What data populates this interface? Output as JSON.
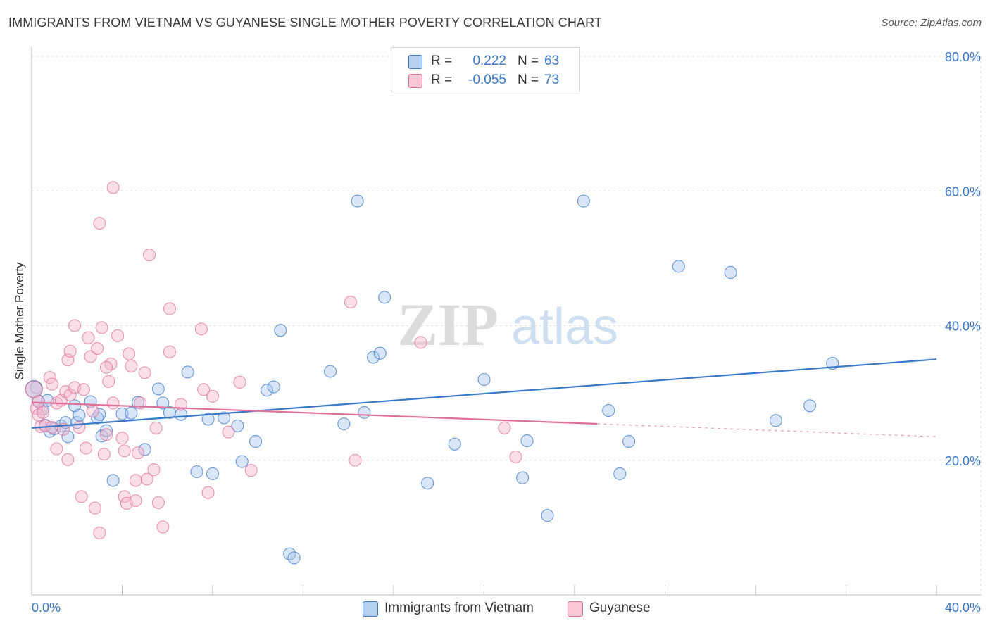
{
  "title": "IMMIGRANTS FROM VIETNAM VS GUYANESE SINGLE MOTHER POVERTY CORRELATION CHART",
  "source": "Source: ZipAtlas.com",
  "watermark": {
    "zip": "ZIP",
    "atlas": "atlas"
  },
  "colors": {
    "blue": "#3a78c8",
    "blue_fill": "#a9c8ee",
    "blue_swatch": "#b8d0f0",
    "pink": "#e0709a",
    "pink_fill": "#f6b8cc",
    "pink_swatch": "#f8c8d6",
    "grid": "#dddddd",
    "axis": "#bbbbbb"
  },
  "legend_top": {
    "rows": [
      {
        "r_label": "R =",
        "r_value": "0.222",
        "n_label": "N =",
        "n_value": "63"
      },
      {
        "r_label": "R =",
        "r_value": "-0.055",
        "n_label": "N =",
        "n_value": "73"
      }
    ]
  },
  "legend_bottom": {
    "items": [
      {
        "label": "Immigrants from Vietnam"
      },
      {
        "label": "Guyanese"
      }
    ]
  },
  "chart_data": {
    "type": "scatter",
    "title": "IMMIGRANTS FROM VIETNAM VS GUYANESE SINGLE MOTHER POVERTY CORRELATION CHART",
    "xlabel": "",
    "ylabel": "Single Mother Poverty",
    "xlim": [
      0,
      40
    ],
    "ylim": [
      0,
      80
    ],
    "x_tick_labels": [
      "0.0%",
      "40.0%"
    ],
    "y_ticks": [
      20,
      40,
      60,
      80
    ],
    "y_tick_labels": [
      "20.0%",
      "40.0%",
      "60.0%",
      "80.0%"
    ],
    "grid": true,
    "legend": "top-center and bottom",
    "series": [
      {
        "name": "Immigrants from Vietnam",
        "color": "#3a78c8",
        "r": 0.222,
        "n": 63,
        "trend": {
          "x": [
            0,
            40
          ],
          "y": [
            24.8,
            35.0
          ],
          "dashed_from": null
        },
        "points": [
          [
            0.2,
            30.8
          ],
          [
            0.3,
            28.8
          ],
          [
            0.5,
            27.6
          ],
          [
            0.6,
            25.2
          ],
          [
            0.7,
            28.9
          ],
          [
            0.8,
            24.3
          ],
          [
            1.0,
            24.7
          ],
          [
            1.3,
            25.1
          ],
          [
            1.5,
            25.6
          ],
          [
            1.6,
            23.5
          ],
          [
            1.9,
            28.1
          ],
          [
            2.0,
            25.6
          ],
          [
            2.1,
            26.7
          ],
          [
            2.6,
            28.7
          ],
          [
            2.9,
            26.3
          ],
          [
            3.1,
            23.6
          ],
          [
            3.3,
            24.4
          ],
          [
            3.0,
            26.8
          ],
          [
            3.6,
            17.0
          ],
          [
            4.0,
            26.9
          ],
          [
            4.4,
            27.0
          ],
          [
            4.7,
            28.6
          ],
          [
            5.0,
            21.6
          ],
          [
            5.6,
            30.6
          ],
          [
            5.8,
            28.5
          ],
          [
            6.1,
            27.1
          ],
          [
            6.6,
            26.8
          ],
          [
            6.9,
            33.1
          ],
          [
            7.3,
            18.3
          ],
          [
            7.8,
            26.1
          ],
          [
            8.0,
            18.0
          ],
          [
            8.5,
            26.3
          ],
          [
            9.1,
            25.1
          ],
          [
            9.3,
            19.8
          ],
          [
            9.9,
            22.8
          ],
          [
            10.4,
            30.4
          ],
          [
            10.7,
            30.9
          ],
          [
            11.0,
            39.3
          ],
          [
            11.4,
            6.1
          ],
          [
            11.6,
            5.5
          ],
          [
            13.2,
            33.2
          ],
          [
            13.8,
            25.4
          ],
          [
            14.4,
            58.5
          ],
          [
            14.7,
            27.1
          ],
          [
            15.1,
            35.3
          ],
          [
            15.4,
            35.9
          ],
          [
            15.6,
            44.2
          ],
          [
            17.5,
            16.6
          ],
          [
            18.7,
            22.4
          ],
          [
            20.0,
            32.0
          ],
          [
            21.7,
            17.4
          ],
          [
            21.9,
            22.9
          ],
          [
            22.8,
            11.8
          ],
          [
            24.4,
            58.5
          ],
          [
            25.5,
            27.4
          ],
          [
            26.0,
            18.0
          ],
          [
            26.4,
            22.8
          ],
          [
            28.6,
            48.8
          ],
          [
            30.9,
            47.9
          ],
          [
            32.9,
            25.9
          ],
          [
            34.4,
            28.1
          ],
          [
            35.4,
            34.4
          ],
          [
            0.1,
            30.6
          ]
        ]
      },
      {
        "name": "Guyanese",
        "color": "#e0709a",
        "r": -0.055,
        "n": 73,
        "trend": {
          "x": [
            0,
            40
          ],
          "y": [
            28.6,
            23.5
          ],
          "dashed_from": 25
        },
        "points": [
          [
            0.1,
            30.5
          ],
          [
            0.2,
            27.7
          ],
          [
            0.3,
            28.7
          ],
          [
            0.3,
            26.7
          ],
          [
            0.4,
            25.0
          ],
          [
            0.5,
            27.1
          ],
          [
            0.6,
            25.1
          ],
          [
            0.8,
            32.3
          ],
          [
            0.9,
            31.3
          ],
          [
            0.9,
            24.9
          ],
          [
            1.1,
            21.7
          ],
          [
            1.1,
            28.5
          ],
          [
            1.3,
            28.9
          ],
          [
            1.4,
            24.6
          ],
          [
            1.5,
            30.2
          ],
          [
            1.6,
            34.9
          ],
          [
            1.6,
            20.1
          ],
          [
            1.7,
            29.7
          ],
          [
            1.7,
            36.2
          ],
          [
            1.9,
            30.8
          ],
          [
            1.9,
            40.0
          ],
          [
            2.1,
            24.9
          ],
          [
            2.2,
            14.6
          ],
          [
            2.3,
            30.5
          ],
          [
            2.4,
            21.8
          ],
          [
            2.5,
            38.2
          ],
          [
            2.6,
            35.4
          ],
          [
            2.7,
            27.3
          ],
          [
            2.8,
            12.9
          ],
          [
            2.9,
            36.6
          ],
          [
            3.0,
            55.2
          ],
          [
            3.0,
            9.2
          ],
          [
            3.1,
            39.7
          ],
          [
            3.2,
            20.9
          ],
          [
            3.3,
            23.8
          ],
          [
            3.4,
            31.7
          ],
          [
            3.5,
            34.3
          ],
          [
            3.3,
            33.8
          ],
          [
            3.6,
            28.5
          ],
          [
            3.6,
            60.5
          ],
          [
            3.8,
            38.5
          ],
          [
            4.0,
            23.3
          ],
          [
            4.1,
            21.4
          ],
          [
            4.1,
            14.6
          ],
          [
            4.2,
            13.6
          ],
          [
            4.3,
            35.8
          ],
          [
            4.4,
            34.0
          ],
          [
            4.6,
            17.0
          ],
          [
            4.6,
            14.0
          ],
          [
            4.7,
            21.1
          ],
          [
            4.8,
            28.5
          ],
          [
            5.0,
            33.0
          ],
          [
            5.1,
            17.2
          ],
          [
            5.2,
            50.5
          ],
          [
            5.4,
            18.6
          ],
          [
            5.5,
            24.8
          ],
          [
            5.6,
            13.7
          ],
          [
            5.8,
            10.1
          ],
          [
            6.1,
            36.1
          ],
          [
            6.1,
            42.5
          ],
          [
            6.6,
            28.3
          ],
          [
            7.5,
            39.5
          ],
          [
            7.6,
            30.5
          ],
          [
            7.8,
            15.2
          ],
          [
            8.0,
            29.5
          ],
          [
            8.7,
            24.2
          ],
          [
            9.2,
            31.6
          ],
          [
            9.7,
            18.5
          ],
          [
            14.1,
            43.5
          ],
          [
            14.3,
            20.0
          ],
          [
            17.2,
            37.5
          ],
          [
            20.9,
            24.8
          ],
          [
            21.4,
            20.5
          ]
        ]
      }
    ]
  }
}
